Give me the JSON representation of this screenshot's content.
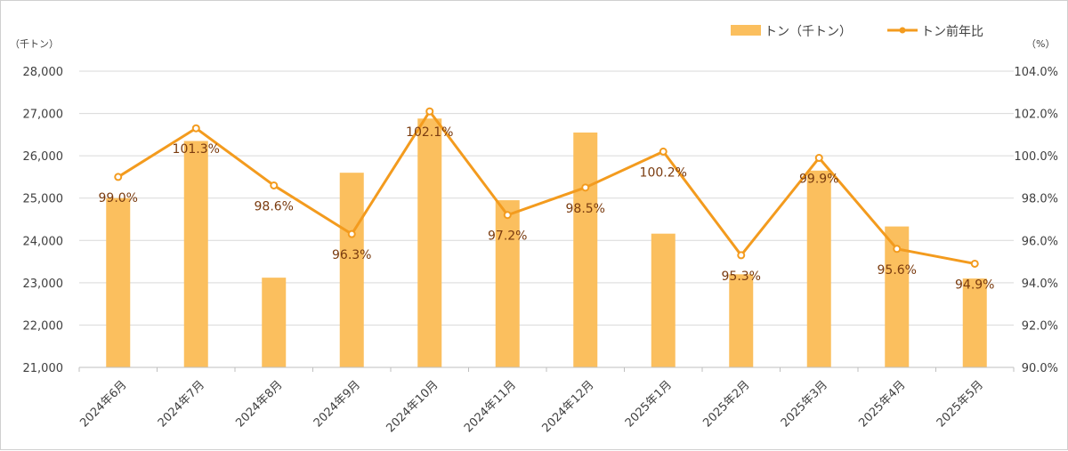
{
  "chart_data": {
    "type": "bar",
    "categories": [
      "2024年6月",
      "2024年7月",
      "2024年8月",
      "2024年9月",
      "2024年10月",
      "2024年11月",
      "2024年12月",
      "2025年1月",
      "2025年2月",
      "2025年3月",
      "2025年4月",
      "2025年5月"
    ],
    "series": [
      {
        "name": "トン（千トン）",
        "type": "bar",
        "axis": "left",
        "color": "#fbbf5e",
        "values": [
          25000,
          26350,
          23120,
          25600,
          26880,
          24950,
          26550,
          24160,
          23200,
          25650,
          24330,
          23100
        ]
      },
      {
        "name": "トン前年比",
        "type": "line",
        "axis": "right",
        "color": "#f39b1e",
        "values": [
          99.0,
          101.3,
          98.6,
          96.3,
          102.1,
          97.2,
          98.5,
          100.2,
          95.3,
          99.9,
          95.6,
          94.9
        ],
        "labels": [
          "99.0%",
          "101.3%",
          "98.6%",
          "96.3%",
          "102.1%",
          "97.2%",
          "98.5%",
          "100.2%",
          "95.3%",
          "99.9%",
          "95.6%",
          "94.9%"
        ]
      }
    ],
    "y_left": {
      "unit": "（千トン）",
      "min": 21000,
      "max": 28000,
      "ticks": [
        21000,
        22000,
        23000,
        24000,
        25000,
        26000,
        27000,
        28000
      ],
      "tick_labels": [
        "21,000",
        "22,000",
        "23,000",
        "24,000",
        "25,000",
        "26,000",
        "27,000",
        "28,000"
      ]
    },
    "y_right": {
      "unit": "（%）",
      "min": 90,
      "max": 104,
      "ticks": [
        90,
        92,
        94,
        96,
        98,
        100,
        102,
        104
      ],
      "tick_labels": [
        "90.0%",
        "92.0%",
        "94.0%",
        "96.0%",
        "98.0%",
        "100.0%",
        "102.0%",
        "104.0%"
      ]
    },
    "grid": true,
    "legend_position": "top-right"
  }
}
